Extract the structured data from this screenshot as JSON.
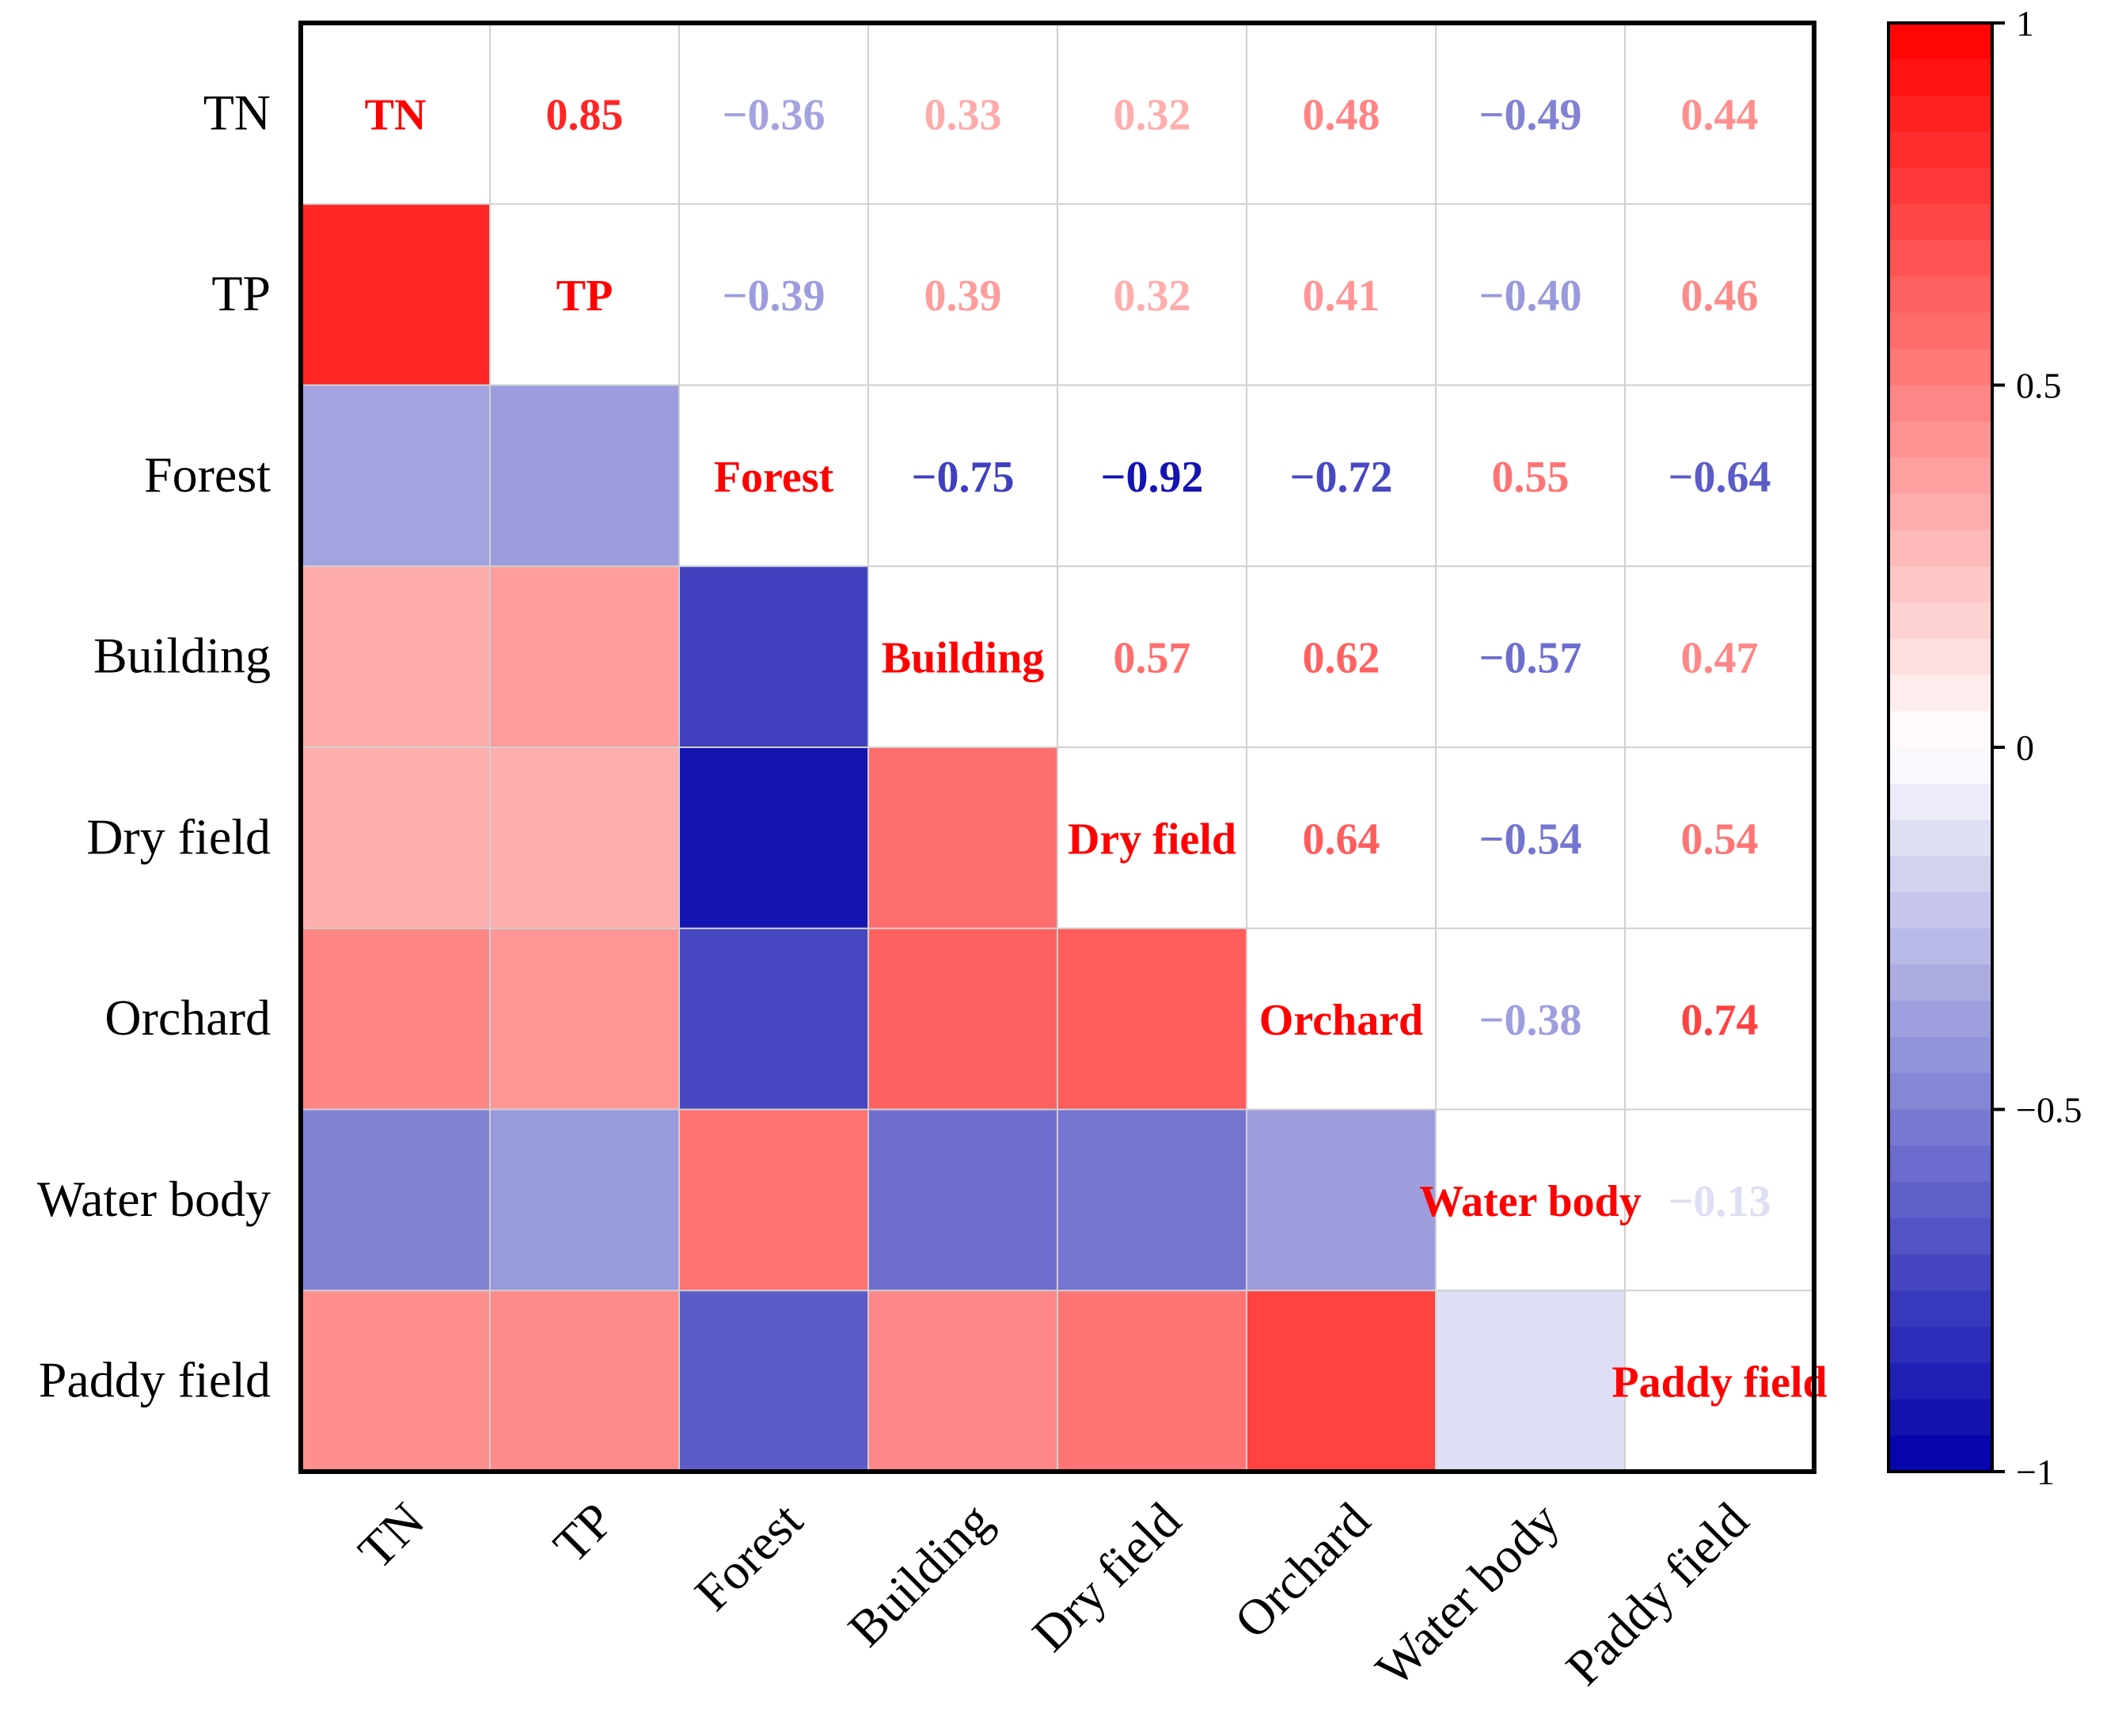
{
  "chart_data": {
    "type": "heatmap",
    "title": "",
    "variables": [
      "TN",
      "TP",
      "Forest",
      "Building",
      "Dry field",
      "Orchard",
      "Water body",
      "Paddy field"
    ],
    "matrix": [
      [
        1,
        0.85,
        -0.36,
        0.33,
        0.32,
        0.48,
        -0.49,
        0.44
      ],
      [
        0.85,
        1,
        -0.39,
        0.39,
        0.32,
        0.41,
        -0.4,
        0.46
      ],
      [
        -0.36,
        -0.39,
        1,
        -0.75,
        -0.92,
        -0.72,
        0.55,
        -0.64
      ],
      [
        0.33,
        0.39,
        -0.75,
        1,
        0.57,
        0.62,
        -0.57,
        0.47
      ],
      [
        0.32,
        0.32,
        -0.92,
        0.57,
        1,
        0.64,
        -0.54,
        0.54
      ],
      [
        0.48,
        0.41,
        -0.72,
        0.62,
        0.64,
        1,
        -0.38,
        0.74
      ],
      [
        -0.49,
        -0.4,
        0.55,
        -0.57,
        -0.54,
        -0.38,
        1,
        -0.13
      ],
      [
        0.44,
        0.46,
        -0.64,
        0.47,
        0.54,
        0.74,
        -0.13,
        1
      ]
    ],
    "upper_triangle": "numeric labels",
    "lower_triangle": "color cells",
    "diagonal": "variable names",
    "colorbar": {
      "range": [
        -1,
        1
      ],
      "ticks": [
        1,
        0.5,
        0,
        -0.5,
        -1
      ],
      "tick_labels": [
        "1",
        "0.5",
        "0",
        "−0.5",
        "−1"
      ],
      "steps": 40,
      "placement": "right"
    },
    "colors": {
      "positive": "#ff0000",
      "zero": "#ffffff",
      "negative": "#0000aa",
      "diagonal_text": "#ff0000",
      "grid": "#d0d0d0"
    }
  }
}
